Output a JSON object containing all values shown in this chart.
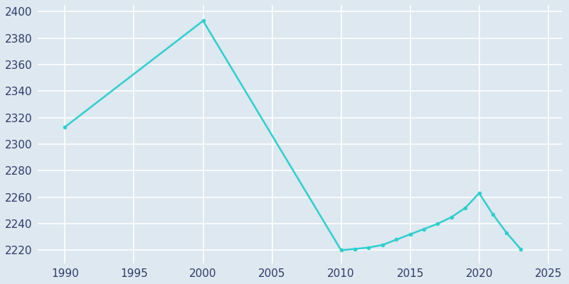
{
  "years": [
    1990,
    2000,
    2010,
    2011,
    2012,
    2013,
    2014,
    2015,
    2016,
    2017,
    2018,
    2019,
    2020,
    2021,
    2022,
    2023
  ],
  "population": [
    2313,
    2393,
    2220,
    2221,
    2222,
    2224,
    2228,
    2232,
    2236,
    2240,
    2245,
    2252,
    2263,
    2247,
    2233,
    2221
  ],
  "line_color": "#2ecfcf",
  "bg_color": "#dde8f0",
  "fig_bg_color": "#dde8f0",
  "grid_color": "#f0f4f8",
  "xlim": [
    1988,
    2026
  ],
  "ylim": [
    2210,
    2405
  ],
  "yticks": [
    2220,
    2240,
    2260,
    2280,
    2300,
    2320,
    2340,
    2360,
    2380,
    2400
  ],
  "xticks": [
    1990,
    1995,
    2000,
    2005,
    2010,
    2015,
    2020,
    2025
  ],
  "tick_label_color": "#2d3a6b",
  "tick_fontsize": 11,
  "marker_size": 4
}
